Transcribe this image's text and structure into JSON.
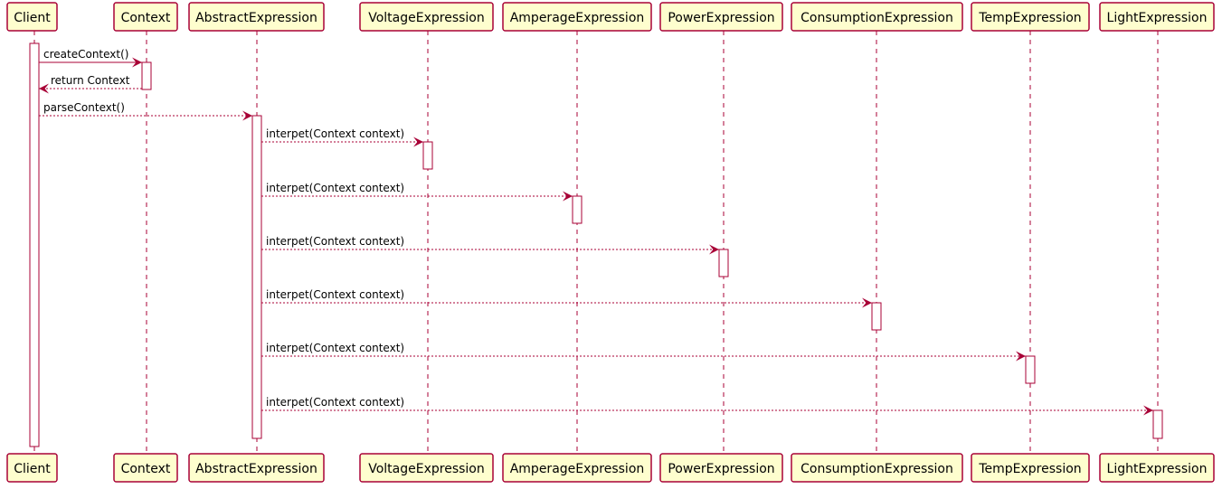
{
  "colors": {
    "participant_fill": "#FEFECE",
    "participant_border": "#A80036",
    "lifeline": "#A80036",
    "activation_fill": "#FFFFFF",
    "activation_border": "#A80036",
    "arrow": "#A80036"
  },
  "participants": [
    {
      "id": "client",
      "label": "Client"
    },
    {
      "id": "context",
      "label": "Context"
    },
    {
      "id": "abstract",
      "label": "AbstractExpression"
    },
    {
      "id": "voltage",
      "label": "VoltageExpression"
    },
    {
      "id": "amperage",
      "label": "AmperageExpression"
    },
    {
      "id": "power",
      "label": "PowerExpression"
    },
    {
      "id": "consumption",
      "label": "ConsumptionExpression"
    },
    {
      "id": "temp",
      "label": "TempExpression"
    },
    {
      "id": "light",
      "label": "LightExpression"
    }
  ],
  "messages": [
    {
      "from": "client",
      "to": "context",
      "label": "createContext()",
      "style": "solid"
    },
    {
      "from": "context",
      "to": "client",
      "label": "return Context",
      "style": "dashed"
    },
    {
      "from": "client",
      "to": "abstract",
      "label": "parseContext()",
      "style": "dashed"
    },
    {
      "from": "abstract",
      "to": "voltage",
      "label": "interpet(Context context)",
      "style": "dashed"
    },
    {
      "from": "abstract",
      "to": "amperage",
      "label": "interpet(Context context)",
      "style": "dashed"
    },
    {
      "from": "abstract",
      "to": "power",
      "label": "interpet(Context context)",
      "style": "dashed"
    },
    {
      "from": "abstract",
      "to": "consumption",
      "label": "interpet(Context context)",
      "style": "dashed"
    },
    {
      "from": "abstract",
      "to": "temp",
      "label": "interpet(Context context)",
      "style": "dashed"
    },
    {
      "from": "abstract",
      "to": "light",
      "label": "interpet(Context context)",
      "style": "dashed"
    }
  ]
}
